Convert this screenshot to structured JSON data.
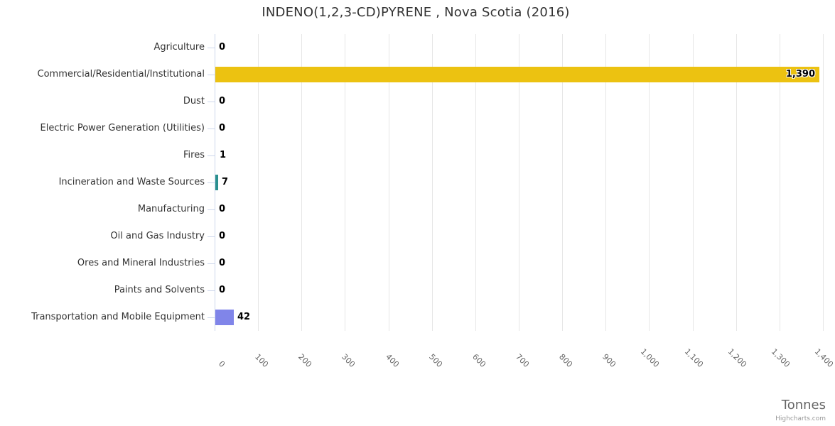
{
  "title": "INDENO(1,2,3-CD)PYRENE , Nova Scotia (2016)",
  "credits": "Highcharts.com",
  "colors": {
    "bar_yellow": "#ecc211",
    "bar_teal": "#2b908f",
    "bar_purple": "#8085e9",
    "gridline": "#e6e6e6",
    "axis_line": "#ccd6eb",
    "title_text": "#333333",
    "category_text": "#333333",
    "tick_text": "#666666",
    "value_text": "#000000",
    "credits_text": "#999999"
  },
  "chart_data": {
    "type": "bar",
    "orientation": "horizontal",
    "title": "INDENO(1,2,3-CD)PYRENE , Nova Scotia (2016)",
    "categories": [
      "Agriculture",
      "Commercial/Residential/Institutional",
      "Dust",
      "Electric Power Generation (Utilities)",
      "Fires",
      "Incineration and Waste Sources",
      "Manufacturing",
      "Oil and Gas Industry",
      "Ores and Mineral Industries",
      "Paints and Solvents",
      "Transportation and Mobile Equipment"
    ],
    "values": [
      0,
      1390,
      0,
      0,
      1,
      7,
      0,
      0,
      0,
      0,
      42
    ],
    "value_labels": [
      "0",
      "1,390",
      "0",
      "0",
      "1",
      "7",
      "0",
      "0",
      "0",
      "0",
      "42"
    ],
    "bar_colors": [
      null,
      "#ecc211",
      null,
      null,
      null,
      "#2b908f",
      null,
      null,
      null,
      null,
      "#8085e9"
    ],
    "xlabel": "Tonnes",
    "xlim": [
      0,
      1400
    ],
    "x_tick_labels": [
      "0",
      "100",
      "200",
      "300",
      "400",
      "500",
      "600",
      "700",
      "800",
      "900",
      "1,000",
      "1,100",
      "1,200",
      "1,300",
      "1,400"
    ],
    "grid": true,
    "legend": false
  }
}
